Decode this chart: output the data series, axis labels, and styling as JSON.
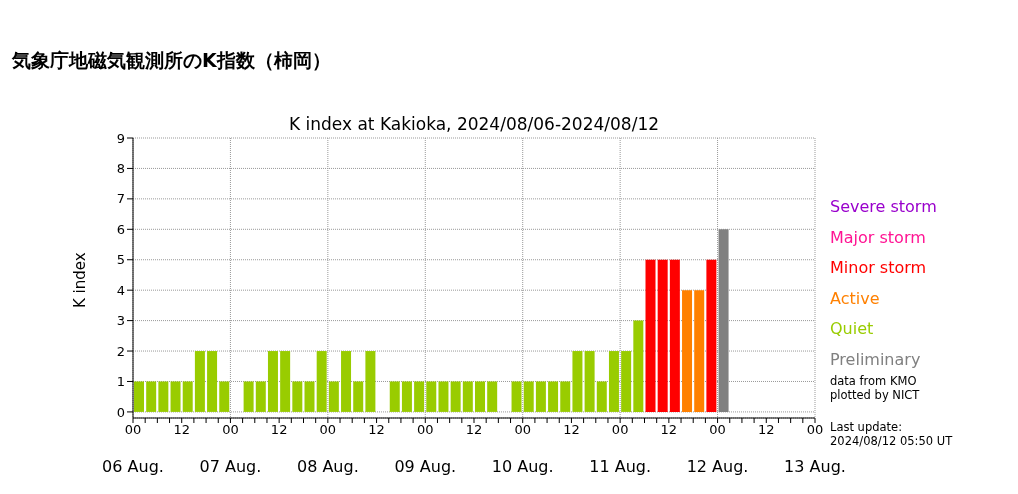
{
  "chart_data": {
    "type": "bar",
    "title": "気象庁地磁気観測所のK指数（柿岡）",
    "subtitle": "K index at Kakioka, 2024/08/06-2024/08/12",
    "ylabel": "K index",
    "x": [
      "2024-08-06T01:30",
      "2024-08-06T04:30",
      "2024-08-06T07:30",
      "2024-08-06T10:30",
      "2024-08-06T13:30",
      "2024-08-06T16:30",
      "2024-08-06T19:30",
      "2024-08-06T22:30",
      "2024-08-07T01:30",
      "2024-08-07T04:30",
      "2024-08-07T07:30",
      "2024-08-07T10:30",
      "2024-08-07T13:30",
      "2024-08-07T16:30",
      "2024-08-07T19:30",
      "2024-08-07T22:30",
      "2024-08-08T01:30",
      "2024-08-08T04:30",
      "2024-08-08T07:30",
      "2024-08-08T10:30",
      "2024-08-08T13:30",
      "2024-08-08T16:30",
      "2024-08-08T19:30",
      "2024-08-08T22:30",
      "2024-08-09T01:30",
      "2024-08-09T04:30",
      "2024-08-09T07:30",
      "2024-08-09T10:30",
      "2024-08-09T13:30",
      "2024-08-09T16:30",
      "2024-08-09T19:30",
      "2024-08-09T22:30",
      "2024-08-10T01:30",
      "2024-08-10T04:30",
      "2024-08-10T07:30",
      "2024-08-10T10:30",
      "2024-08-10T13:30",
      "2024-08-10T16:30",
      "2024-08-10T19:30",
      "2024-08-10T22:30",
      "2024-08-11T01:30",
      "2024-08-11T04:30",
      "2024-08-11T07:30",
      "2024-08-11T10:30",
      "2024-08-11T13:30",
      "2024-08-11T16:30",
      "2024-08-11T19:30",
      "2024-08-11T22:30",
      "2024-08-12T01:30"
    ],
    "stacked": true,
    "series": [
      {
        "name": "Severe storm",
        "color": "#9900cc",
        "values": [
          null,
          null,
          null,
          null,
          null,
          null,
          null,
          null,
          null,
          null,
          null,
          null,
          null,
          null,
          null,
          null,
          null,
          null,
          null,
          null,
          null,
          null,
          null,
          null,
          null,
          null,
          null,
          null,
          null,
          null,
          null,
          null,
          null,
          null,
          null,
          null,
          null,
          null,
          null,
          null,
          null,
          null,
          null,
          null,
          null,
          null,
          null,
          null,
          null
        ]
      },
      {
        "name": "Major storm",
        "color": "#ff1493",
        "values": [
          null,
          null,
          null,
          null,
          null,
          null,
          null,
          null,
          null,
          null,
          null,
          null,
          null,
          null,
          null,
          null,
          null,
          null,
          null,
          null,
          null,
          null,
          null,
          null,
          null,
          null,
          null,
          null,
          null,
          null,
          null,
          null,
          null,
          null,
          null,
          null,
          null,
          null,
          null,
          null,
          null,
          null,
          null,
          null,
          null,
          null,
          null,
          null,
          null
        ]
      },
      {
        "name": "Minor storm",
        "color": "#ff0000",
        "values": [
          null,
          null,
          null,
          null,
          null,
          null,
          null,
          null,
          null,
          null,
          null,
          null,
          null,
          null,
          null,
          null,
          null,
          null,
          null,
          null,
          null,
          null,
          null,
          null,
          null,
          null,
          null,
          null,
          null,
          null,
          null,
          null,
          null,
          null,
          null,
          null,
          null,
          null,
          null,
          null,
          null,
          null,
          5,
          5,
          5,
          null,
          null,
          5,
          null
        ]
      },
      {
        "name": "Active",
        "color": "#ff8000",
        "values": [
          null,
          null,
          null,
          null,
          null,
          null,
          null,
          null,
          null,
          null,
          null,
          null,
          null,
          null,
          null,
          null,
          null,
          null,
          null,
          null,
          null,
          null,
          null,
          null,
          null,
          null,
          null,
          null,
          null,
          null,
          null,
          null,
          null,
          null,
          null,
          null,
          null,
          null,
          null,
          null,
          null,
          null,
          null,
          null,
          null,
          4,
          4,
          null,
          null
        ]
      },
      {
        "name": "Quiet",
        "color": "#99cc00",
        "values": [
          1,
          1,
          1,
          1,
          1,
          2,
          2,
          1,
          0,
          1,
          1,
          2,
          2,
          1,
          1,
          2,
          1,
          2,
          1,
          2,
          0,
          1,
          1,
          1,
          1,
          1,
          1,
          1,
          1,
          1,
          0,
          1,
          1,
          1,
          1,
          1,
          2,
          2,
          1,
          2,
          2,
          3,
          null,
          null,
          null,
          null,
          null,
          null,
          null
        ]
      },
      {
        "name": "Preliminary",
        "color": "#808080",
        "values": [
          null,
          null,
          null,
          null,
          null,
          null,
          null,
          null,
          null,
          null,
          null,
          null,
          null,
          null,
          null,
          null,
          null,
          null,
          null,
          null,
          null,
          null,
          null,
          null,
          null,
          null,
          null,
          null,
          null,
          null,
          null,
          null,
          null,
          null,
          null,
          null,
          null,
          null,
          null,
          null,
          null,
          null,
          null,
          null,
          null,
          null,
          null,
          null,
          6
        ]
      }
    ],
    "xlim": [
      "2024-08-06T00:00",
      "2024-08-13T00:00"
    ],
    "xticks": [
      {
        "value": "2024-08-06T00:00",
        "label": "00"
      },
      {
        "value": "2024-08-06T03:00",
        "label": null
      },
      {
        "value": "2024-08-06T06:00",
        "label": null
      },
      {
        "value": "2024-08-06T09:00",
        "label": null
      },
      {
        "value": "2024-08-06T12:00",
        "label": "12"
      },
      {
        "value": "2024-08-06T15:00",
        "label": null
      },
      {
        "value": "2024-08-06T18:00",
        "label": null
      },
      {
        "value": "2024-08-06T21:00",
        "label": null
      },
      {
        "value": "2024-08-07T00:00",
        "label": "00"
      },
      {
        "value": "2024-08-07T03:00",
        "label": null
      },
      {
        "value": "2024-08-07T06:00",
        "label": null
      },
      {
        "value": "2024-08-07T09:00",
        "label": null
      },
      {
        "value": "2024-08-07T12:00",
        "label": "12"
      },
      {
        "value": "2024-08-07T15:00",
        "label": null
      },
      {
        "value": "2024-08-07T18:00",
        "label": null
      },
      {
        "value": "2024-08-07T21:00",
        "label": null
      },
      {
        "value": "2024-08-08T00:00",
        "label": "00"
      },
      {
        "value": "2024-08-08T03:00",
        "label": null
      },
      {
        "value": "2024-08-08T06:00",
        "label": null
      },
      {
        "value": "2024-08-08T09:00",
        "label": null
      },
      {
        "value": "2024-08-08T12:00",
        "label": "12"
      },
      {
        "value": "2024-08-08T15:00",
        "label": null
      },
      {
        "value": "2024-08-08T18:00",
        "label": null
      },
      {
        "value": "2024-08-08T21:00",
        "label": null
      },
      {
        "value": "2024-08-09T00:00",
        "label": "00"
      },
      {
        "value": "2024-08-09T03:00",
        "label": null
      },
      {
        "value": "2024-08-09T06:00",
        "label": null
      },
      {
        "value": "2024-08-09T09:00",
        "label": null
      },
      {
        "value": "2024-08-09T12:00",
        "label": "12"
      },
      {
        "value": "2024-08-09T15:00",
        "label": null
      },
      {
        "value": "2024-08-09T18:00",
        "label": null
      },
      {
        "value": "2024-08-09T21:00",
        "label": null
      },
      {
        "value": "2024-08-10T00:00",
        "label": "00"
      },
      {
        "value": "2024-08-10T03:00",
        "label": null
      },
      {
        "value": "2024-08-10T06:00",
        "label": null
      },
      {
        "value": "2024-08-10T09:00",
        "label": null
      },
      {
        "value": "2024-08-10T12:00",
        "label": "12"
      },
      {
        "value": "2024-08-10T15:00",
        "label": null
      },
      {
        "value": "2024-08-10T18:00",
        "label": null
      },
      {
        "value": "2024-08-10T21:00",
        "label": null
      },
      {
        "value": "2024-08-11T00:00",
        "label": "00"
      },
      {
        "value": "2024-08-11T03:00",
        "label": null
      },
      {
        "value": "2024-08-11T06:00",
        "label": null
      },
      {
        "value": "2024-08-11T09:00",
        "label": null
      },
      {
        "value": "2024-08-11T12:00",
        "label": "12"
      },
      {
        "value": "2024-08-11T15:00",
        "label": null
      },
      {
        "value": "2024-08-11T18:00",
        "label": null
      },
      {
        "value": "2024-08-11T21:00",
        "label": null
      },
      {
        "value": "2024-08-12T00:00",
        "label": "00"
      },
      {
        "value": "2024-08-12T03:00",
        "label": null
      },
      {
        "value": "2024-08-12T06:00",
        "label": null
      },
      {
        "value": "2024-08-12T09:00",
        "label": null
      },
      {
        "value": "2024-08-12T12:00",
        "label": "12"
      },
      {
        "value": "2024-08-12T15:00",
        "label": null
      },
      {
        "value": "2024-08-12T18:00",
        "label": null
      },
      {
        "value": "2024-08-12T21:00",
        "label": null
      },
      {
        "value": "2024-08-13T00:00",
        "label": "00"
      }
    ],
    "ylim": [
      -0.2,
      9
    ],
    "yticks": [
      0,
      1,
      2,
      3,
      4,
      5,
      6,
      7,
      8,
      9
    ],
    "grid": true,
    "annotations": [
      "06 Aug.",
      "07 Aug.",
      "08 Aug.",
      "09 Aug.",
      "10 Aug.",
      "11 Aug.",
      "12 Aug.",
      "13 Aug.",
      "data from KMO\nplotted by NICT",
      "Last update:\n2024/08/12 05:50 UT"
    ]
  }
}
